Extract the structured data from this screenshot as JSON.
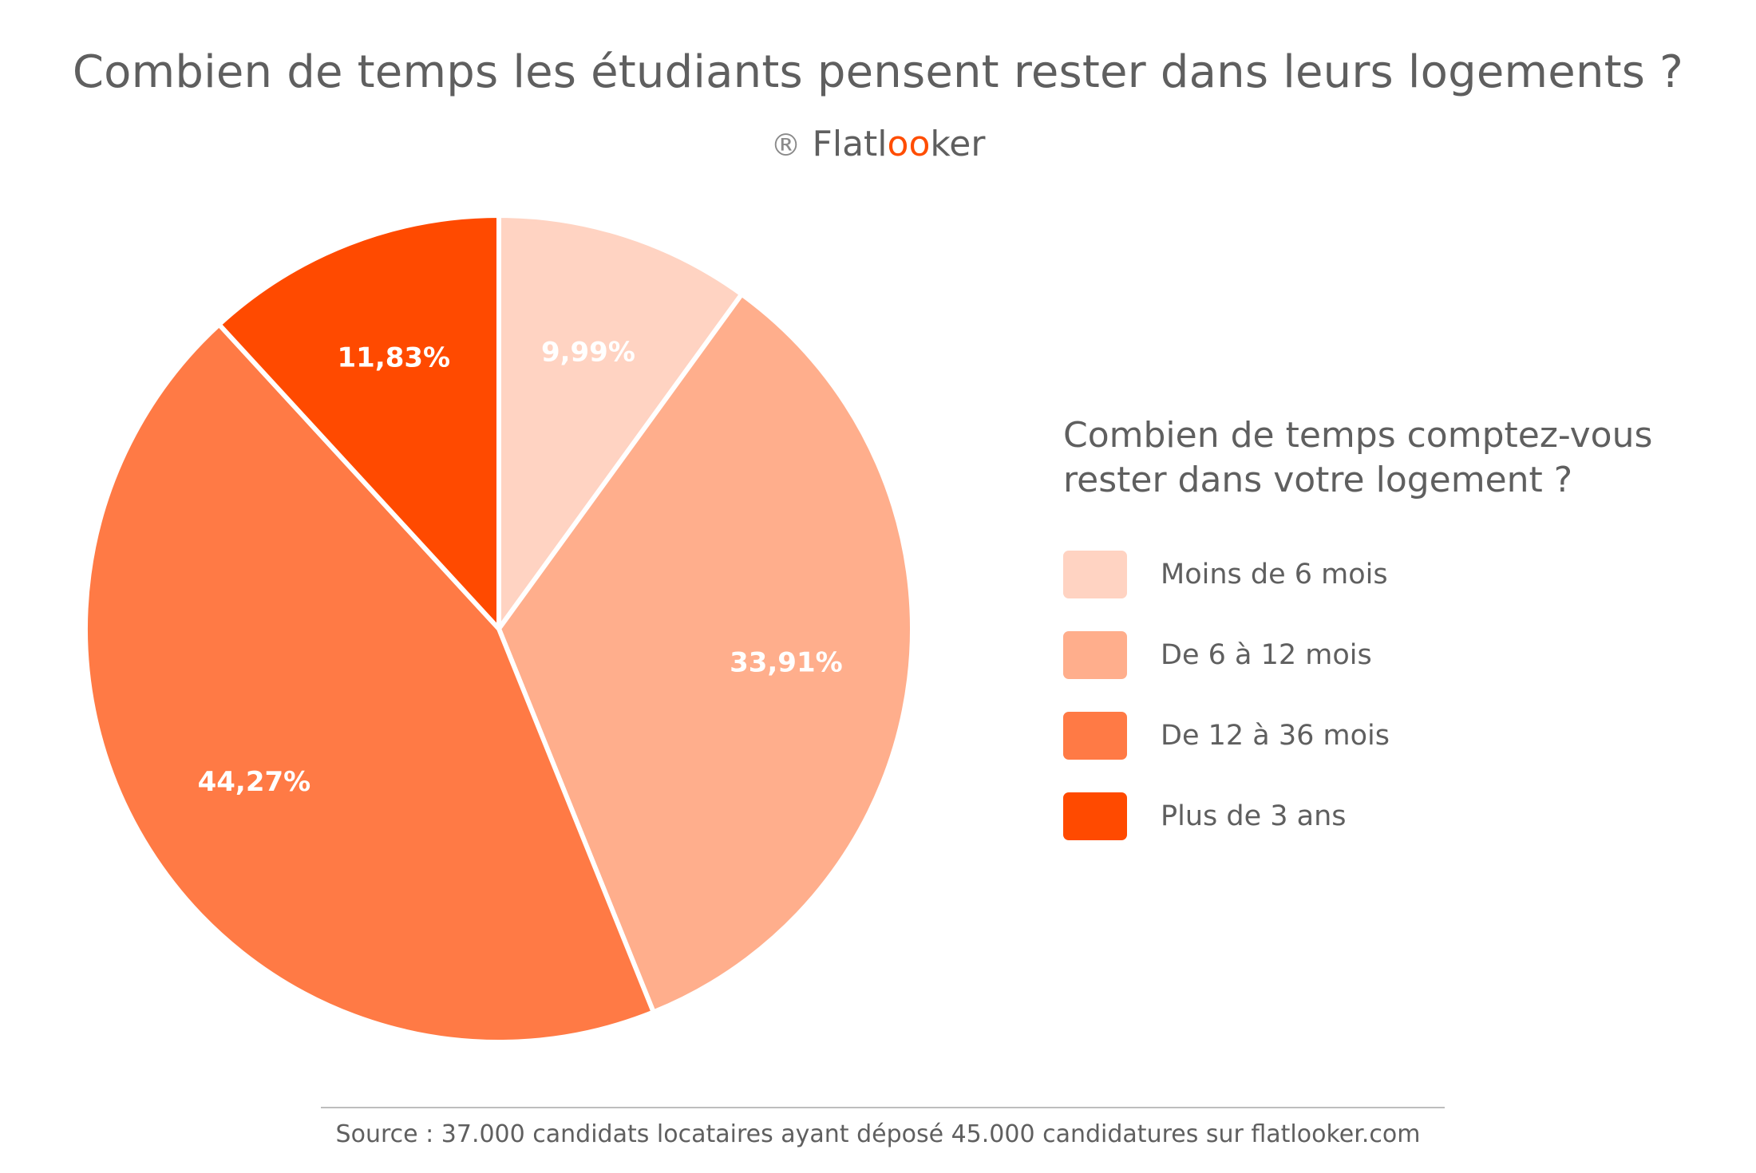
{
  "chart_data": {
    "type": "pie",
    "title": "Combien de temps les étudiants pensent rester dans leurs logements ?",
    "legend_title": "Combien de temps comptez-vous rester dans votre logement ?",
    "legend_placement": "right",
    "categories": [
      "Moins de 6 mois",
      "De 6 à 12 mois",
      "De 12 à 36 mois",
      "Plus de 3 ans"
    ],
    "values": [
      9.99,
      33.91,
      44.27,
      11.83
    ],
    "labels": [
      "9,99%",
      "33,91%",
      "44,27%",
      "11,83%"
    ],
    "colors": [
      "#ffd3c2",
      "#ffae8c",
      "#ff7a45",
      "#ff4a00"
    ]
  },
  "brand": {
    "reg_symbol": "®",
    "name_prefix": "Flatl",
    "name_accent": "oo",
    "name_suffix": "ker"
  },
  "footer": {
    "source": "Source : 37.000 candidats locataires ayant déposé 45.000 candidatures sur flatlooker.com"
  }
}
